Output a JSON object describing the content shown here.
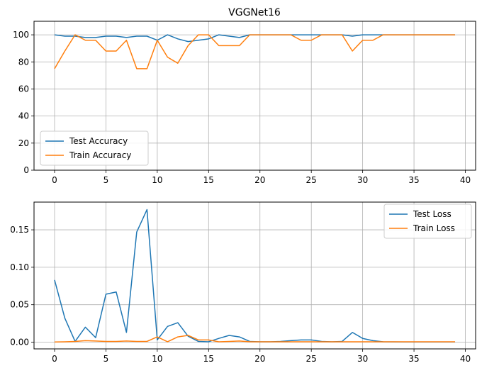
{
  "chart_data": [
    {
      "type": "line",
      "title": "VGGNet16",
      "xlabel": "",
      "ylabel": "",
      "xlim": [
        -2,
        41
      ],
      "ylim": [
        0,
        110
      ],
      "xticks": [
        "0",
        "5",
        "10",
        "15",
        "20",
        "25",
        "30",
        "35",
        "40"
      ],
      "yticks": [
        "0",
        "20",
        "40",
        "60",
        "80",
        "100"
      ],
      "grid": true,
      "legend_position": "lower-left",
      "x": [
        0,
        1,
        2,
        3,
        4,
        5,
        6,
        7,
        8,
        9,
        10,
        11,
        12,
        13,
        14,
        15,
        16,
        17,
        18,
        19,
        20,
        21,
        22,
        23,
        24,
        25,
        26,
        27,
        28,
        29,
        30,
        31,
        32,
        33,
        34,
        35,
        36,
        37,
        38,
        39
      ],
      "series": [
        {
          "name": "Test Accuracy",
          "color": "#1f77b4",
          "values": [
            100,
            99,
            99,
            98,
            98,
            99,
            99,
            98,
            99,
            99,
            96,
            100,
            97,
            95,
            96,
            97,
            100,
            99,
            98,
            100,
            100,
            100,
            100,
            100,
            100,
            100,
            100,
            100,
            100,
            99,
            100,
            100,
            100,
            100,
            100,
            100,
            100,
            100,
            100,
            100
          ]
        },
        {
          "name": "Train Accuracy",
          "color": "#ff7f0e",
          "values": [
            75,
            88,
            100,
            96,
            96,
            88,
            88,
            96,
            75,
            75,
            96,
            83.5,
            79,
            92,
            100,
            100,
            92,
            92,
            92,
            100,
            100,
            100,
            100,
            100,
            96,
            96,
            100,
            100,
            100,
            88,
            96,
            96,
            100,
            100,
            100,
            100,
            100,
            100,
            100,
            100
          ]
        }
      ]
    },
    {
      "type": "line",
      "title": "",
      "xlabel": "",
      "ylabel": "",
      "xlim": [
        -2,
        41
      ],
      "ylim": [
        -0.009,
        0.187
      ],
      "xticks": [
        "0",
        "5",
        "10",
        "15",
        "20",
        "25",
        "30",
        "35",
        "40"
      ],
      "yticks": [
        "0.00",
        "0.05",
        "0.10",
        "0.15"
      ],
      "grid": true,
      "legend_position": "upper-right",
      "x": [
        0,
        1,
        2,
        3,
        4,
        5,
        6,
        7,
        8,
        9,
        10,
        11,
        12,
        13,
        14,
        15,
        16,
        17,
        18,
        19,
        20,
        21,
        22,
        23,
        24,
        25,
        26,
        27,
        28,
        29,
        30,
        31,
        32,
        33,
        34,
        35,
        36,
        37,
        38,
        39
      ],
      "series": [
        {
          "name": "Test Loss",
          "color": "#1f77b4",
          "values": [
            0.083,
            0.032,
            0.001,
            0.02,
            0.006,
            0.064,
            0.067,
            0.013,
            0.147,
            0.177,
            0.003,
            0.021,
            0.026,
            0.008,
            0.001,
            0.0005,
            0.005,
            0.009,
            0.007,
            0.001,
            0.0005,
            0.0005,
            0.001,
            0.002,
            0.003,
            0.003,
            0.001,
            0.0005,
            0.001,
            0.013,
            0.005,
            0.002,
            0.0005,
            0.0003,
            0.0002,
            0.0002,
            0.0002,
            0.0002,
            0.0002,
            0.0002
          ]
        },
        {
          "name": "Train Loss",
          "color": "#ff7f0e",
          "values": [
            0.0002,
            0.0005,
            0.001,
            0.002,
            0.0015,
            0.001,
            0.001,
            0.0015,
            0.001,
            0.001,
            0.007,
            0.0005,
            0.007,
            0.009,
            0.003,
            0.003,
            0.0005,
            0.001,
            0.0015,
            0.0005,
            0.0005,
            0.0005,
            0.0005,
            0.0005,
            0.0005,
            0.0005,
            0.0005,
            0.0005,
            0.0005,
            0.0005,
            0.0005,
            0.0005,
            0.0005,
            0.0005,
            0.0005,
            0.0005,
            0.0005,
            0.0005,
            0.0005,
            0.0005
          ]
        }
      ]
    }
  ]
}
